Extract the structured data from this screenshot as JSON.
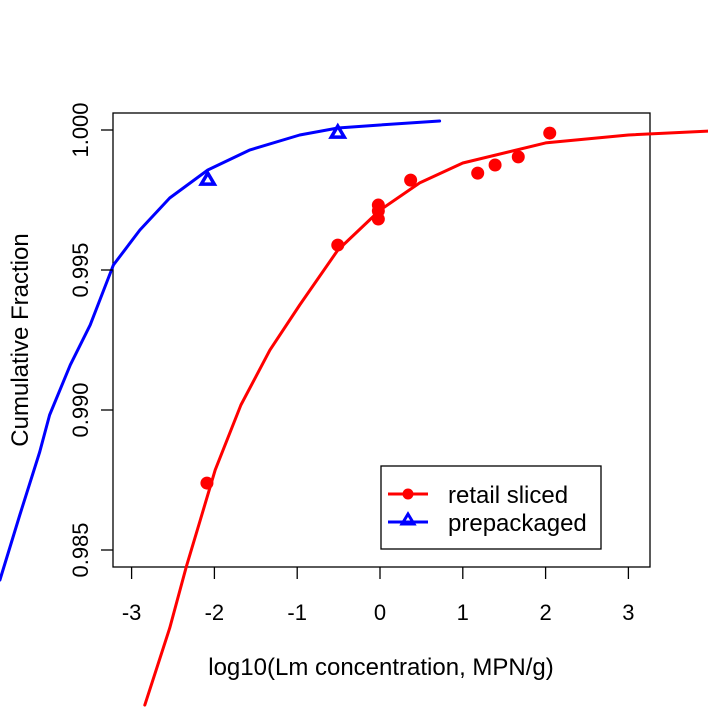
{
  "chart_data": {
    "type": "line",
    "title": "",
    "xlabel": "log10(Lm concentration, MPN/g)",
    "ylabel": "Cumulative Fraction",
    "xlim": [
      -3.23,
      3.25
    ],
    "ylim": [
      0.9844,
      1.0006
    ],
    "x_ticks": [
      -3,
      -2,
      -1,
      0,
      1,
      2,
      3
    ],
    "x_tick_labels": [
      "-3",
      "-2",
      "-1",
      "0",
      "1",
      "2",
      "3"
    ],
    "y_ticks": [
      0.985,
      0.99,
      0.995,
      1.0
    ],
    "y_tick_labels": [
      "0.985",
      "0.990",
      "0.995",
      "1.000"
    ],
    "grid": false,
    "legend_position": "bottom-right",
    "series": [
      {
        "name": "retail sliced",
        "color": "#ff0000",
        "marker": "circle",
        "points": [
          {
            "x": -2.09,
            "y": 0.98739
          },
          {
            "x": -0.51,
            "y": 0.99589
          },
          {
            "x": -0.02,
            "y": 0.99732
          },
          {
            "x": -0.02,
            "y": 0.99711
          },
          {
            "x": -0.02,
            "y": 0.99682
          },
          {
            "x": 0.37,
            "y": 0.99821
          },
          {
            "x": 1.18,
            "y": 0.99846
          },
          {
            "x": 1.39,
            "y": 0.99875
          },
          {
            "x": 1.67,
            "y": 0.99904
          },
          {
            "x": 2.05,
            "y": 0.99989
          }
        ],
        "curve": [
          {
            "x": -2.84,
            "y": 0.97946
          },
          {
            "x": -2.54,
            "y": 0.98221
          },
          {
            "x": -2.34,
            "y": 0.98439
          },
          {
            "x": -2.17,
            "y": 0.98607
          },
          {
            "x": -1.99,
            "y": 0.98786
          },
          {
            "x": -1.68,
            "y": 0.99018
          },
          {
            "x": -1.33,
            "y": 0.99214
          },
          {
            "x": -0.97,
            "y": 0.99375
          },
          {
            "x": -0.51,
            "y": 0.99571
          },
          {
            "x": 0.0,
            "y": 0.99714
          },
          {
            "x": 0.48,
            "y": 0.99811
          },
          {
            "x": 1.0,
            "y": 0.99882
          },
          {
            "x": 2.0,
            "y": 0.99954
          },
          {
            "x": 3.0,
            "y": 0.99982
          },
          {
            "x": 3.96,
            "y": 0.99996
          }
        ]
      },
      {
        "name": "prepackaged",
        "color": "#0000ff",
        "marker": "triangle",
        "points": [
          {
            "x": -2.08,
            "y": 0.99821
          },
          {
            "x": -0.51,
            "y": 0.99989
          }
        ],
        "curve": [
          {
            "x": -4.59,
            "y": 0.98393
          },
          {
            "x": -4.35,
            "y": 0.98625
          },
          {
            "x": -4.11,
            "y": 0.9885
          },
          {
            "x": -3.99,
            "y": 0.98982
          },
          {
            "x": -3.74,
            "y": 0.99161
          },
          {
            "x": -3.5,
            "y": 0.99304
          },
          {
            "x": -3.22,
            "y": 0.99518
          },
          {
            "x": -2.9,
            "y": 0.99643
          },
          {
            "x": -2.54,
            "y": 0.99757
          },
          {
            "x": -2.08,
            "y": 0.99857
          },
          {
            "x": -1.57,
            "y": 0.99929
          },
          {
            "x": -0.97,
            "y": 0.99982
          },
          {
            "x": -0.51,
            "y": 1.00007
          },
          {
            "x": 0.0,
            "y": 1.00018
          },
          {
            "x": 0.72,
            "y": 1.00032
          }
        ]
      }
    ]
  }
}
